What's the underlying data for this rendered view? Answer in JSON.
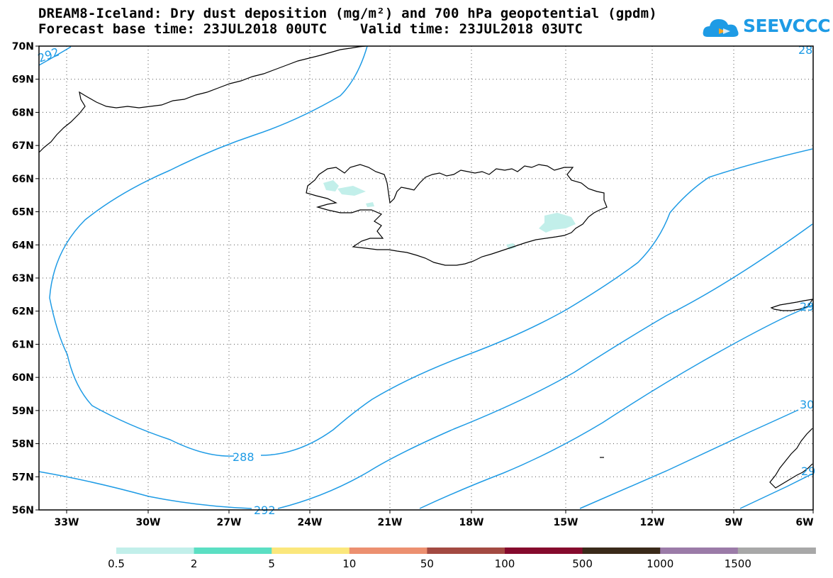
{
  "header": {
    "title_line1": "DREAM8-Iceland: Dry dust deposition (mg/m²) and 700 hPa geopotential (gpdm)",
    "title_line2": "Forecast base time: 23JUL2018 00UTC    Valid time: 23JUL2018 03UTC"
  },
  "logo": {
    "text": "SEEVCCC",
    "icon": "cloud-logo-icon",
    "color": "#1e9be5"
  },
  "map": {
    "lat_labels": [
      "70N",
      "69N",
      "68N",
      "67N",
      "66N",
      "65N",
      "64N",
      "63N",
      "62N",
      "61N",
      "60N",
      "59N",
      "58N",
      "57N",
      "56N"
    ],
    "lon_labels": [
      "33W",
      "30W",
      "27W",
      "24W",
      "21W",
      "18W",
      "15W",
      "12W",
      "9W",
      "6W"
    ],
    "contour_labels": [
      "292",
      "288",
      "292",
      "28",
      "29",
      "30",
      "29",
      "29"
    ],
    "contour_color": "#1e9be5",
    "coast_color": "#000000",
    "dust_color": "#c2efea"
  },
  "legend": {
    "colors": [
      "#c2efea",
      "#5bdfc3",
      "#fbe77c",
      "#ec9070",
      "#a34a42",
      "#850a2d",
      "#3a2a1a",
      "#9b7ba8",
      "#a8a8a8"
    ],
    "labels": [
      "0.5",
      "2",
      "5",
      "10",
      "50",
      "100",
      "500",
      "1000",
      "1500"
    ]
  }
}
